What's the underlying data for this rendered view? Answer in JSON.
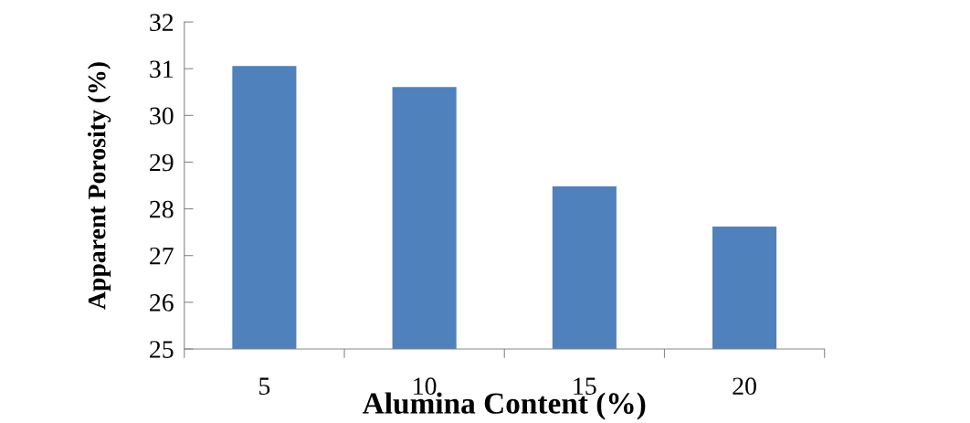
{
  "chart_data": {
    "type": "bar",
    "xlabel": "Alumina Content (%)",
    "ylabel": "Apparent Porosity (%)",
    "categories": [
      "5",
      "10",
      "15",
      "20"
    ],
    "values": [
      31.06,
      30.61,
      28.48,
      27.62
    ],
    "color": "#4f81bd",
    "ylim": [
      25,
      32
    ],
    "yticks": [
      25,
      26,
      27,
      28,
      29,
      30,
      31,
      32
    ],
    "grid": false,
    "legend": false
  }
}
